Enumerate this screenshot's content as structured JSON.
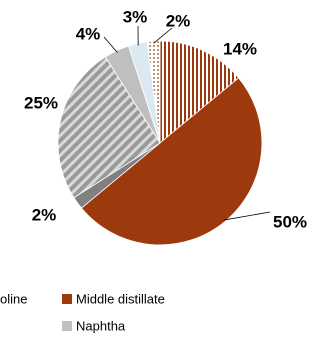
{
  "chart_data": {
    "type": "pie",
    "title": "",
    "slices": [
      {
        "name": "Middle distillate",
        "value": 14,
        "label": "14%",
        "color": "#9c3a0e",
        "pattern": "vertical-stripes"
      },
      {
        "name": "Middle distillate",
        "value": 50,
        "label": "50%",
        "color": "#9c3a0e",
        "pattern": "solid"
      },
      {
        "name": "",
        "value": 2,
        "label": "2%",
        "color": "#808080",
        "pattern": "solid"
      },
      {
        "name": "",
        "value": 25,
        "label": "25%",
        "color": "#a6a6a6",
        "pattern": "diagonal-stripes"
      },
      {
        "name": "Naphtha",
        "value": 4,
        "label": "4%",
        "color": "#bfbfbf",
        "pattern": "solid"
      },
      {
        "name": "",
        "value": 3,
        "label": "3%",
        "color": "#dbe9f3",
        "pattern": "solid"
      },
      {
        "name": "",
        "value": 2,
        "label": "2%",
        "color": "#d9b89c",
        "pattern": "dots"
      }
    ],
    "legend": {
      "placement": "bottom",
      "entries": [
        {
          "label": "oline",
          "color": "#a6a6a6",
          "swatch": false
        },
        {
          "label": "Middle distillate",
          "color": "#9c3a0e",
          "swatch": true
        },
        {
          "label": "Naphtha",
          "color": "#bfbfbf",
          "swatch": true
        }
      ]
    }
  }
}
